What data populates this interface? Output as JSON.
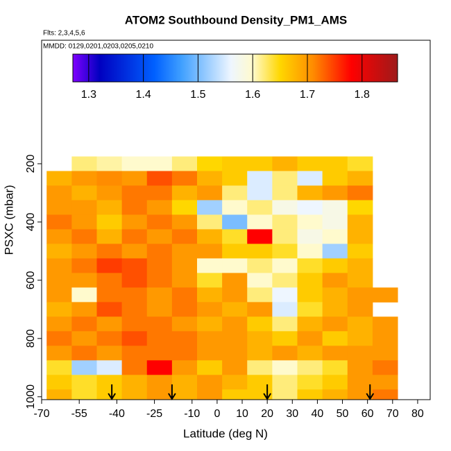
{
  "chart_data": {
    "type": "heatmap",
    "title": "ATOM2 Southbound Density_PM1_AMS",
    "subtitle": "Flts: 2,3,4,5,6",
    "annotation": "MMDD: 0129,0201,0203,0205,0210",
    "x_label": "Latitude (deg N)",
    "y_label": "PSXC (mbar)",
    "xlim": [
      -70,
      85
    ],
    "xticks": [
      -70,
      -55,
      -40,
      -25,
      -10,
      0,
      10,
      20,
      30,
      40,
      50,
      60,
      70,
      80
    ],
    "ylim": [
      -224,
      1010
    ],
    "y_reversed": true,
    "yticks": [
      200,
      400,
      600,
      800,
      1000
    ],
    "x_edges": [
      -68,
      -58,
      -48,
      -38,
      -28,
      -18,
      -8,
      2,
      12,
      22,
      32,
      42,
      52,
      62,
      72
    ],
    "y_edges": [
      175,
      225,
      275,
      325,
      375,
      425,
      475,
      525,
      575,
      625,
      675,
      725,
      775,
      825,
      875,
      925,
      975,
      1025
    ],
    "z": [
      [
        null,
        1.62,
        1.61,
        1.6,
        1.6,
        1.62,
        1.65,
        1.66,
        1.66,
        1.68,
        1.66,
        1.66,
        1.64,
        null
      ],
      [
        1.68,
        1.7,
        1.71,
        1.7,
        1.74,
        1.72,
        1.68,
        1.66,
        1.55,
        1.62,
        1.55,
        1.66,
        1.68,
        null
      ],
      [
        1.7,
        1.68,
        1.7,
        1.72,
        1.72,
        1.68,
        1.7,
        1.62,
        1.55,
        1.62,
        1.68,
        1.7,
        1.72,
        null
      ],
      [
        1.7,
        1.7,
        1.68,
        1.72,
        1.7,
        1.65,
        1.52,
        1.6,
        1.62,
        1.58,
        1.56,
        1.58,
        1.65,
        null
      ],
      [
        1.72,
        1.7,
        1.66,
        1.7,
        1.72,
        1.7,
        1.62,
        1.5,
        1.6,
        1.62,
        1.6,
        1.58,
        1.68,
        null
      ],
      [
        1.7,
        1.72,
        1.68,
        1.72,
        1.7,
        1.72,
        1.68,
        1.64,
        1.78,
        1.62,
        1.58,
        1.6,
        1.68,
        null
      ],
      [
        1.68,
        1.7,
        1.72,
        1.7,
        1.72,
        1.7,
        1.7,
        1.66,
        1.66,
        1.64,
        1.6,
        1.52,
        1.66,
        null
      ],
      [
        1.7,
        1.72,
        1.75,
        1.74,
        1.72,
        1.7,
        1.6,
        1.6,
        1.62,
        1.6,
        1.64,
        1.66,
        1.68,
        null
      ],
      [
        1.7,
        1.7,
        1.72,
        1.74,
        1.72,
        1.7,
        1.64,
        1.7,
        1.6,
        1.62,
        1.66,
        1.7,
        1.68,
        null
      ],
      [
        1.7,
        1.6,
        1.72,
        1.72,
        1.7,
        1.72,
        1.68,
        1.7,
        1.62,
        1.56,
        1.66,
        1.68,
        1.7,
        1.7
      ],
      [
        1.68,
        1.7,
        1.74,
        1.72,
        1.7,
        1.72,
        1.7,
        1.68,
        1.7,
        1.55,
        1.64,
        1.68,
        1.7,
        null
      ],
      [
        1.7,
        1.72,
        1.7,
        1.72,
        1.72,
        1.7,
        1.68,
        1.7,
        1.66,
        1.62,
        1.68,
        1.7,
        1.68,
        1.7
      ],
      [
        1.72,
        1.7,
        1.72,
        1.74,
        1.72,
        1.72,
        1.7,
        1.7,
        1.68,
        1.66,
        1.7,
        1.66,
        1.68,
        1.7
      ],
      [
        1.7,
        1.72,
        1.7,
        1.72,
        1.72,
        1.72,
        1.7,
        1.7,
        1.68,
        1.7,
        1.68,
        1.7,
        1.7,
        1.7
      ],
      [
        1.64,
        1.52,
        1.55,
        1.72,
        1.78,
        1.7,
        1.66,
        1.7,
        1.62,
        1.6,
        1.62,
        1.64,
        1.7,
        1.72
      ],
      [
        1.66,
        1.64,
        1.66,
        1.68,
        1.7,
        1.68,
        1.7,
        1.68,
        1.66,
        1.62,
        1.64,
        1.66,
        1.7,
        1.7
      ],
      [
        1.68,
        1.64,
        1.66,
        1.68,
        1.7,
        1.68,
        1.7,
        1.66,
        1.66,
        1.62,
        1.66,
        1.68,
        1.7,
        1.72
      ]
    ],
    "colorbar_lim": [
      1.271,
      1.865
    ],
    "colorbar_ticks": [
      1.3,
      1.4,
      1.5,
      1.6,
      1.7,
      1.8
    ],
    "colorscale": [
      [
        1.271,
        "#7f00ff"
      ],
      [
        1.32,
        "#0000c0"
      ],
      [
        1.42,
        "#0060ff"
      ],
      [
        1.47,
        "#40a0ff"
      ],
      [
        1.56,
        "#eef6ff"
      ],
      [
        1.6,
        "#fffacd"
      ],
      [
        1.65,
        "#ffd700"
      ],
      [
        1.71,
        "#ff8c00"
      ],
      [
        1.78,
        "#ff0000"
      ],
      [
        1.865,
        "#9e1a1a"
      ]
    ],
    "arrows": [
      -42,
      -18,
      20,
      61
    ]
  }
}
